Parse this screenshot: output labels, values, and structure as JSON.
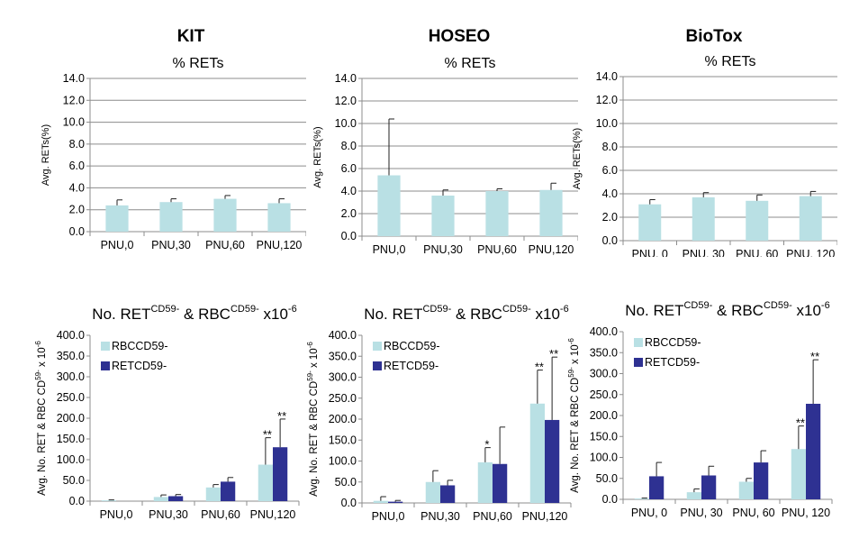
{
  "labs": [
    "KIT",
    "HOSEO",
    "BioTox"
  ],
  "chart_data": [
    {
      "id": "kit-ret",
      "type": "bar",
      "title": "% RETs",
      "ylabel": "Avg. RETs(%)",
      "ylim": [
        0,
        14
      ],
      "yticks": [
        "0.0",
        "2.0",
        "4.0",
        "6.0",
        "8.0",
        "10.0",
        "12.0",
        "14.0"
      ],
      "categories": [
        "PNU,0",
        "PNU,30",
        "PNU,60",
        "PNU,120"
      ],
      "grid": true,
      "series": [
        {
          "values": [
            2.4,
            2.7,
            3.0,
            2.6
          ],
          "errors": [
            0.5,
            0.3,
            0.3,
            0.4
          ],
          "color": "#b9e0e4",
          "stars": [
            "",
            "",
            "",
            ""
          ]
        }
      ]
    },
    {
      "id": "hoseo-ret",
      "type": "bar",
      "title": "% RETs",
      "ylabel": "Avg. RETs(%)",
      "ylim": [
        0,
        14
      ],
      "yticks": [
        "0.0",
        "2.0",
        "4.0",
        "6.0",
        "8.0",
        "10.0",
        "12.0",
        "14.0"
      ],
      "categories": [
        "PNU,0",
        "PNU,30",
        "PNU,60",
        "PNU,120"
      ],
      "grid": true,
      "series": [
        {
          "values": [
            5.4,
            3.6,
            4.0,
            4.1
          ],
          "errors": [
            5.0,
            0.5,
            0.2,
            0.6
          ],
          "color": "#b9e0e4",
          "stars": [
            "",
            "",
            "",
            ""
          ]
        }
      ]
    },
    {
      "id": "biotox-ret",
      "type": "bar",
      "title": "% RETs",
      "ylabel": "Avg. RETs(%)",
      "ylim": [
        0,
        14
      ],
      "yticks": [
        "0.0",
        "2.0",
        "4.0",
        "6.0",
        "8.0",
        "10.0",
        "12.0",
        "14.0"
      ],
      "categories": [
        "PNU, 0",
        "PNU, 30",
        "PNU, 60",
        "PNU, 120"
      ],
      "grid": true,
      "series": [
        {
          "values": [
            3.1,
            3.7,
            3.4,
            3.8
          ],
          "errors": [
            0.4,
            0.4,
            0.5,
            0.4
          ],
          "color": "#b9e0e4",
          "stars": [
            "",
            "",
            "",
            ""
          ]
        }
      ]
    },
    {
      "id": "kit-cd59",
      "type": "bar",
      "title_main": "No. RET",
      "title_sup1": "CD59-",
      "title_mid": " & RBC",
      "title_sup2": "CD59-",
      "title_end": " x10",
      "title_sup3": "-6",
      "ylabel_main": "Avg. No. RET & RBC CD",
      "ylabel_sup": "59-",
      "ylabel_end": " x 10",
      "ylabel_sup2": "-6",
      "ylim": [
        0,
        400
      ],
      "yticks": [
        "0.0",
        "50.0",
        "100.0",
        "150.0",
        "200.0",
        "250.0",
        "300.0",
        "350.0",
        "400.0"
      ],
      "categories": [
        "PNU,0",
        "PNU,30",
        "PNU,60",
        "PNU,120"
      ],
      "grid": false,
      "legend": "top-left",
      "series": [
        {
          "name": "RBCCD59-",
          "values": [
            2,
            10,
            33,
            88
          ],
          "errors": [
            1,
            5,
            7,
            65
          ],
          "color": "#b9e0e4",
          "stars": [
            "",
            "",
            "",
            "**"
          ]
        },
        {
          "name": "RETCD59-",
          "values": [
            0,
            12,
            47,
            130
          ],
          "errors": [
            0,
            4,
            10,
            68
          ],
          "color": "#2e3192",
          "stars": [
            "",
            "",
            "",
            "**"
          ]
        }
      ]
    },
    {
      "id": "hoseo-cd59",
      "type": "bar",
      "title_main": "No. RET",
      "title_sup1": "CD59-",
      "title_mid": " & RBC",
      "title_sup2": "CD59-",
      "title_end": " x10",
      "title_sup3": "-6",
      "ylabel_main": "Avg. No. RET & RBC CD",
      "ylabel_sup": "59-",
      "ylabel_end": " x 10",
      "ylabel_sup2": "-6",
      "ylim": [
        0,
        400
      ],
      "yticks": [
        "0.0",
        "50.0",
        "100.0",
        "150.0",
        "200.0",
        "250.0",
        "300.0",
        "350.0",
        "400.0"
      ],
      "categories": [
        "PNU,0",
        "PNU,30",
        "PNU,60",
        "PNU,120"
      ],
      "grid": false,
      "legend": "top-left",
      "series": [
        {
          "name": "RBCCD59-",
          "values": [
            5,
            50,
            97,
            237
          ],
          "errors": [
            10,
            27,
            35,
            80
          ],
          "color": "#b9e0e4",
          "stars": [
            "",
            "",
            "*",
            "**"
          ]
        },
        {
          "name": "RETCD59-",
          "values": [
            3,
            42,
            93,
            198
          ],
          "errors": [
            3,
            12,
            88,
            150
          ],
          "color": "#2e3192",
          "stars": [
            "",
            "",
            "",
            "**"
          ]
        }
      ]
    },
    {
      "id": "biotox-cd59",
      "type": "bar",
      "title_main": "No. RET",
      "title_sup1": "CD59-",
      "title_mid": " & RBC",
      "title_sup2": "CD59-",
      "title_end": " x10",
      "title_sup3": "-6",
      "ylabel_main": "Avg. No. RET & RBC CD",
      "ylabel_sup": "59-",
      "ylabel_end": " x 10",
      "ylabel_sup2": "-6",
      "ylim": [
        0,
        400
      ],
      "yticks": [
        "0.0",
        "50.0",
        "100.0",
        "150.0",
        "200.0",
        "250.0",
        "300.0",
        "350.0",
        "400.0"
      ],
      "categories": [
        "PNU, 0",
        "PNU, 30",
        "PNU, 60",
        "PNU, 120"
      ],
      "grid": false,
      "legend": "top-left",
      "series": [
        {
          "name": "RBCCD59-",
          "values": [
            2,
            17,
            42,
            120
          ],
          "errors": [
            1,
            8,
            8,
            55
          ],
          "color": "#b9e0e4",
          "stars": [
            "",
            "",
            "",
            "**"
          ]
        },
        {
          "name": "RETCD59-",
          "values": [
            55,
            57,
            88,
            228
          ],
          "errors": [
            33,
            22,
            28,
            105
          ],
          "color": "#2e3192",
          "stars": [
            "",
            "",
            "",
            "**"
          ]
        }
      ]
    }
  ]
}
